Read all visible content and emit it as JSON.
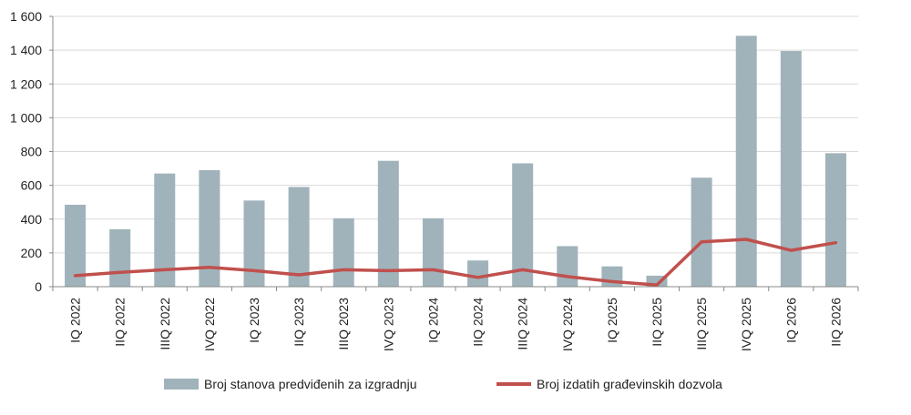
{
  "chart_data": {
    "type": "bar",
    "categories": [
      "IQ 2022",
      "IIQ 2022",
      "IIIQ 2022",
      "IVQ 2022",
      "IQ 2023",
      "IIQ 2023",
      "IIIQ 2023",
      "IVQ 2023",
      "IQ 2024",
      "IIQ 2024",
      "IIIQ 2024",
      "IVQ 2024",
      "IQ 2025",
      "IIQ 2025",
      "IIIQ 2025",
      "IVQ 2025",
      "IQ 2026",
      "IIQ 2026"
    ],
    "series": [
      {
        "name": "Broj stanova predviđenih za izgradnju",
        "type": "bar",
        "color": "#a0b3bb",
        "values": [
          485,
          340,
          670,
          690,
          510,
          590,
          405,
          745,
          405,
          155,
          730,
          240,
          120,
          65,
          645,
          1485,
          1395,
          790
        ]
      },
      {
        "name": "Broj izdatih građevinskih dozvola",
        "type": "line",
        "color": "#c0504d",
        "values": [
          65,
          85,
          100,
          115,
          95,
          70,
          100,
          95,
          100,
          55,
          100,
          60,
          30,
          10,
          265,
          280,
          215,
          260
        ]
      }
    ],
    "yticks": [
      "0",
      "200",
      "400",
      "600",
      "800",
      "1 000",
      "1 200",
      "1 400",
      "1 600"
    ],
    "ylim": [
      0,
      1600
    ],
    "grid": true,
    "legend_position": "bottom"
  }
}
